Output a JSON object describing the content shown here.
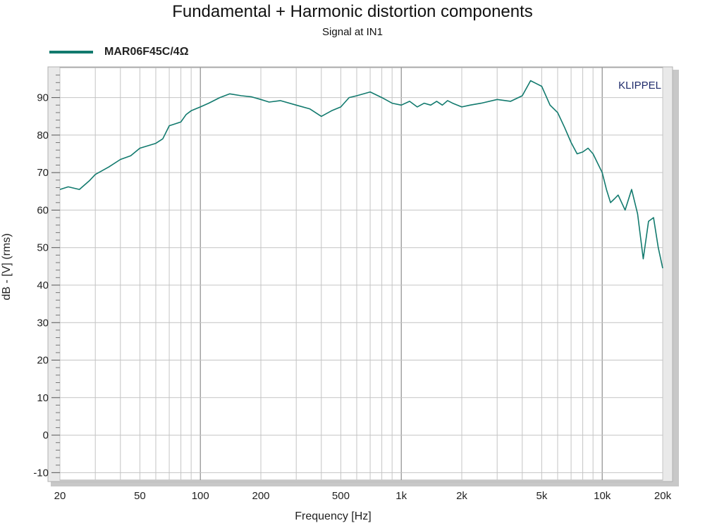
{
  "chart_data": {
    "type": "line",
    "title": "Fundamental + Harmonic distortion components",
    "subtitle": "Signal at IN1",
    "xlabel": "Frequency [Hz]",
    "ylabel": "dB - [V]  (rms)",
    "x_scale": "log",
    "xlim": [
      20,
      20000
    ],
    "ylim": [
      -12,
      98
    ],
    "x_ticks": [
      {
        "value": 20,
        "label": "20"
      },
      {
        "value": 50,
        "label": "50"
      },
      {
        "value": 100,
        "label": "100"
      },
      {
        "value": 200,
        "label": "200"
      },
      {
        "value": 500,
        "label": "500"
      },
      {
        "value": 1000,
        "label": "1k"
      },
      {
        "value": 2000,
        "label": "2k"
      },
      {
        "value": 5000,
        "label": "5k"
      },
      {
        "value": 10000,
        "label": "10k"
      },
      {
        "value": 20000,
        "label": "20k"
      }
    ],
    "y_ticks": [
      -10,
      0,
      10,
      20,
      30,
      40,
      50,
      60,
      70,
      80,
      90
    ],
    "grid": true,
    "legend_position": "top-left",
    "annotation": "KLIPPEL",
    "series": [
      {
        "name": "MAR06F45C/4Ω",
        "color": "#127a6e",
        "x": [
          20,
          22,
          25,
          28,
          30,
          35,
          40,
          45,
          50,
          60,
          65,
          70,
          75,
          80,
          85,
          90,
          100,
          110,
          125,
          140,
          160,
          180,
          200,
          220,
          250,
          300,
          350,
          400,
          450,
          500,
          550,
          600,
          700,
          800,
          900,
          1000,
          1100,
          1200,
          1300,
          1400,
          1500,
          1600,
          1700,
          1800,
          2000,
          2200,
          2500,
          3000,
          3500,
          4000,
          4400,
          5000,
          5500,
          6000,
          6500,
          7000,
          7500,
          8000,
          8500,
          9000,
          10000,
          10500,
          11000,
          11500,
          12000,
          13000,
          14000,
          15000,
          16000,
          17000,
          18000,
          19000,
          20000
        ],
        "y": [
          65.5,
          66.2,
          65.5,
          67.8,
          69.5,
          71.5,
          73.5,
          74.5,
          76.5,
          77.8,
          79.0,
          82.5,
          83.0,
          83.5,
          85.5,
          86.5,
          87.5,
          88.5,
          90.0,
          91.0,
          90.5,
          90.2,
          89.5,
          88.8,
          89.2,
          88.0,
          87.0,
          85.0,
          86.5,
          87.5,
          90.0,
          90.5,
          91.5,
          90.0,
          88.5,
          88.0,
          89.0,
          87.5,
          88.5,
          88.0,
          89.0,
          88.0,
          89.2,
          88.5,
          87.5,
          88.0,
          88.5,
          89.5,
          89.0,
          90.5,
          94.5,
          93.0,
          88.0,
          86.0,
          82.0,
          78.0,
          75.0,
          75.5,
          76.5,
          75.0,
          70.0,
          65.5,
          62.0,
          63.0,
          64.0,
          60.0,
          65.5,
          59.0,
          47.0,
          57.0,
          58.0,
          50.0,
          44.5
        ]
      }
    ]
  }
}
